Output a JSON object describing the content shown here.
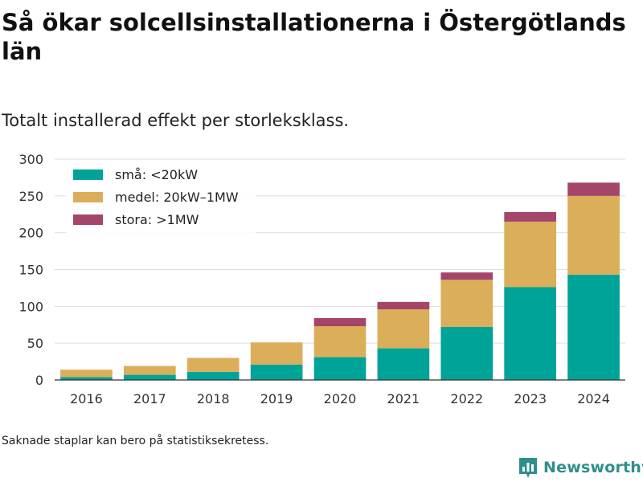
{
  "title": "Så ökar solcellsinstallationerna i Östergötlands län",
  "subtitle": "Totalt installerad effekt per storleksklass.",
  "footnote": "Saknade staplar kan bero på statistiksekretess.",
  "brand": {
    "name": "Newsworthy",
    "icon": "bar-chart-logo-icon"
  },
  "colors": {
    "small": "#00a398",
    "medium": "#dbae5a",
    "large": "#a5456a",
    "brand": "#2f8f8c"
  },
  "chart_data": {
    "type": "bar",
    "stacked": true,
    "categories": [
      "2016",
      "2017",
      "2018",
      "2019",
      "2020",
      "2021",
      "2022",
      "2023",
      "2024"
    ],
    "series": [
      {
        "name": "små: <20kW",
        "values": [
          4,
          7,
          11,
          21,
          31,
          43,
          72,
          126,
          143
        ]
      },
      {
        "name": "medel: 20kW–1MW",
        "values": [
          10,
          12,
          19,
          30,
          42,
          53,
          64,
          89,
          107
        ]
      },
      {
        "name": "stora: >1MW",
        "values": [
          0,
          0,
          0,
          0,
          11,
          10,
          10,
          13,
          18
        ]
      }
    ],
    "ylim": [
      0,
      300
    ],
    "yticks": [
      0,
      50,
      100,
      150,
      200,
      250,
      300
    ],
    "grid": true,
    "legend": "top-left"
  }
}
